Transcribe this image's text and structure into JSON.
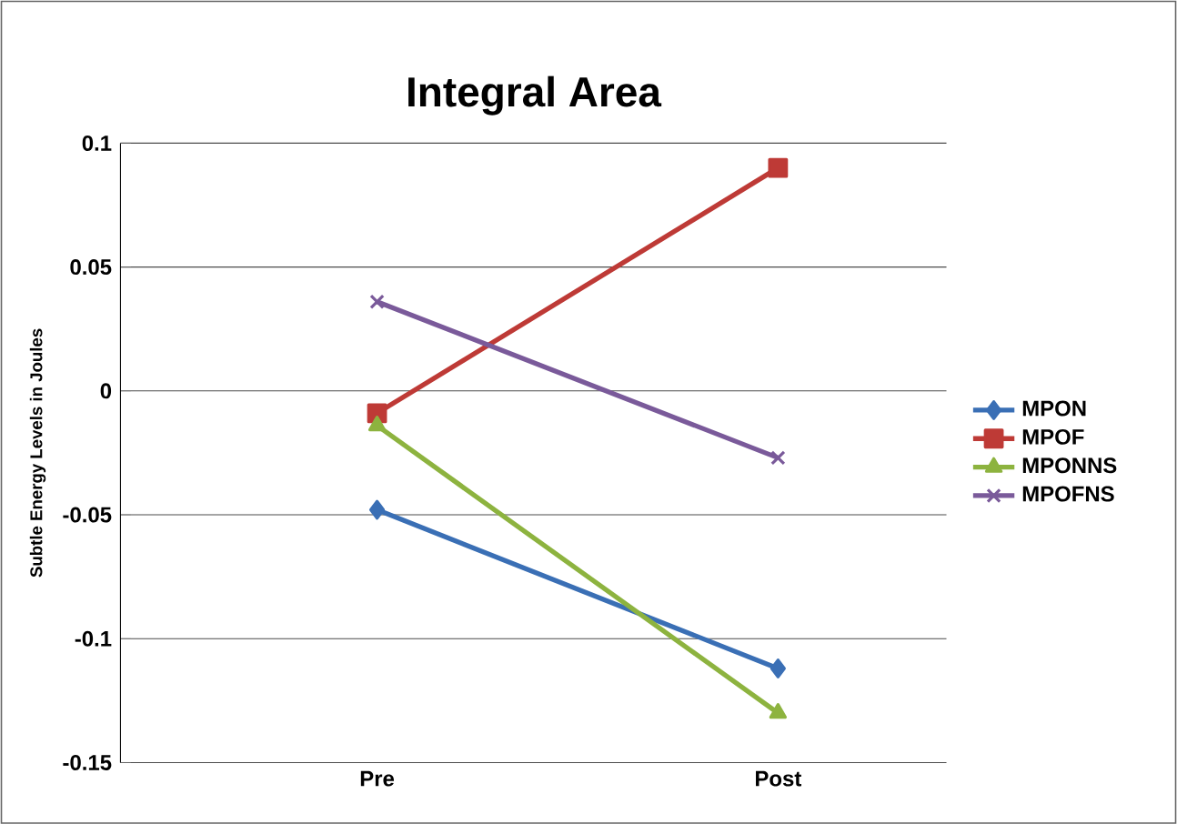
{
  "chart_data": {
    "type": "line",
    "title": "Integral Area",
    "ylabel": "Subtle Energy Levels in Joules",
    "categories": [
      "Pre",
      "Post"
    ],
    "series": [
      {
        "name": "MPON",
        "color": "#3a6fb5",
        "values": [
          -0.048,
          -0.112
        ],
        "marker": "diamond"
      },
      {
        "name": "MPOF",
        "color": "#be3a36",
        "values": [
          -0.009,
          0.09
        ],
        "marker": "square"
      },
      {
        "name": "MPONNS",
        "color": "#8db33f",
        "values": [
          -0.014,
          -0.13
        ],
        "marker": "triangle"
      },
      {
        "name": "MPOFNS",
        "color": "#7a5a9a",
        "values": [
          0.036,
          -0.027
        ],
        "marker": "cross"
      }
    ],
    "ylim": [
      -0.15,
      0.1
    ],
    "yticks": [
      {
        "value": -0.15,
        "label": "-0.15"
      },
      {
        "value": -0.1,
        "label": "-0.1"
      },
      {
        "value": -0.05,
        "label": "-0.05"
      },
      0,
      {
        "value": 0.05,
        "label": "0.05"
      },
      {
        "value": 0.1,
        "label": "0.1"
      }
    ],
    "grid": "y",
    "legend": "right"
  }
}
